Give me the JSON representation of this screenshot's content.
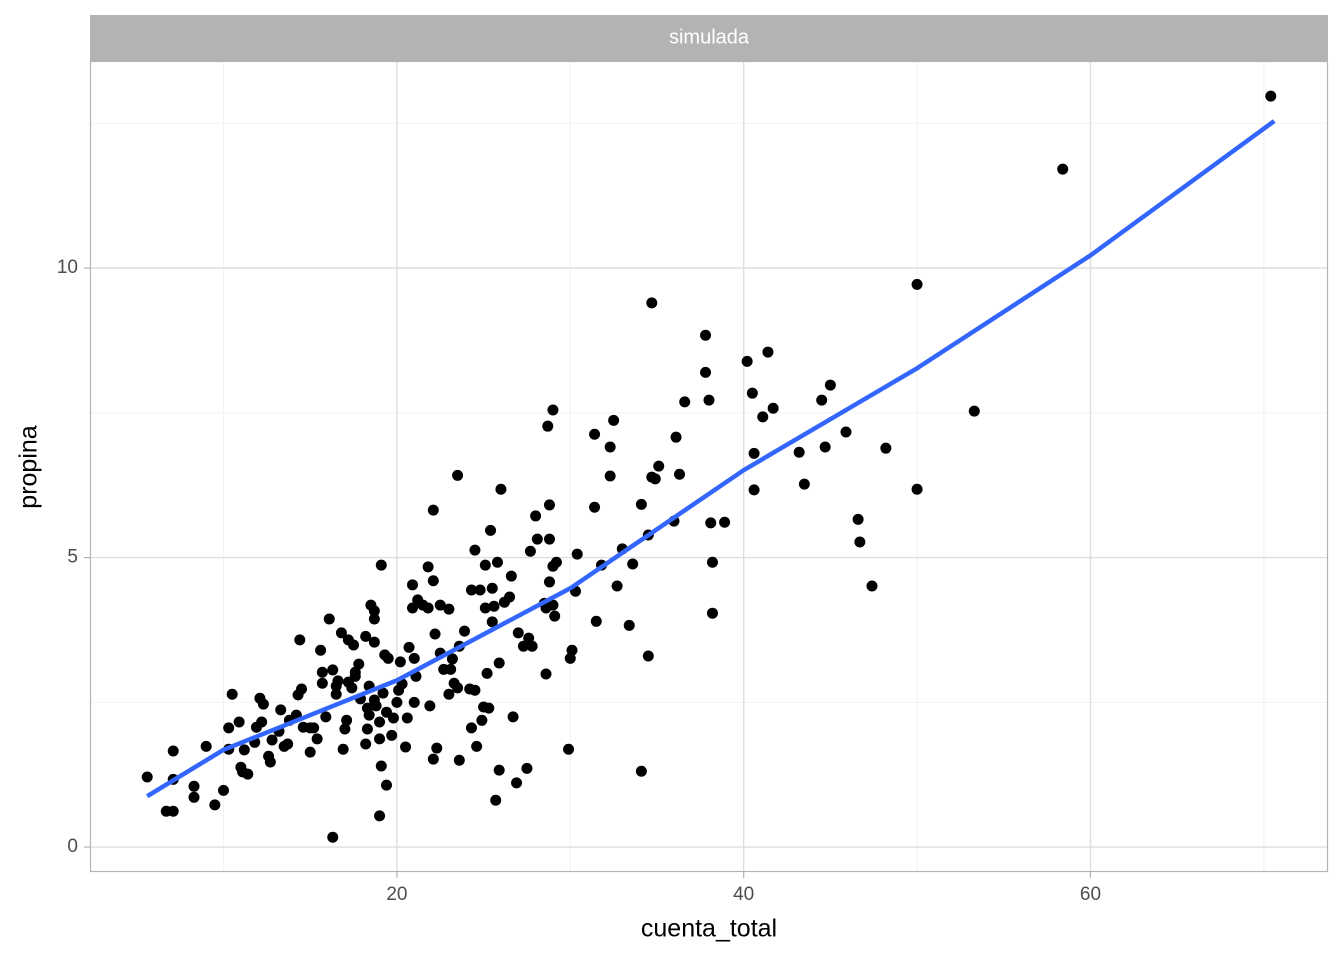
{
  "chart_data": {
    "type": "scatter",
    "facet": "simulada",
    "x_label": "cuenta_total",
    "y_label": "propina",
    "xlim": [
      2.3,
      73.7
    ],
    "ylim": [
      -0.43,
      13.56
    ],
    "xticks": [
      20,
      40,
      60
    ],
    "yticks": [
      0,
      5,
      10
    ],
    "xminor": [
      10,
      30,
      50,
      70
    ],
    "yminor": [
      2.5,
      7.5,
      12.5
    ],
    "grid": true,
    "series": [
      {
        "type": "scatter",
        "color": "#000000",
        "x": [
          5.6,
          6.7,
          7.1,
          7.1,
          7.1,
          8.3,
          8.3,
          9.0,
          9.5,
          10.0,
          10.3,
          10.3,
          10.5,
          10.9,
          11.0,
          11.1,
          11.2,
          11.4,
          11.8,
          11.9,
          12.1,
          12.2,
          12.3,
          12.6,
          12.7,
          12.8,
          13.2,
          13.3,
          13.5,
          13.7,
          13.8,
          14.2,
          14.3,
          14.4,
          14.5,
          14.6,
          15.0,
          15.0,
          15.2,
          15.4,
          15.6,
          15.7,
          15.7,
          15.9,
          16.1,
          16.3,
          16.3,
          16.5,
          16.5,
          16.6,
          16.8,
          16.9,
          17.0,
          17.1,
          17.2,
          17.2,
          17.4,
          17.5,
          17.6,
          17.6,
          17.8,
          17.9,
          18.2,
          18.2,
          18.3,
          18.3,
          18.4,
          18.4,
          18.5,
          18.7,
          18.7,
          18.7,
          18.7,
          18.8,
          19.0,
          19.0,
          19.0,
          19.1,
          19.1,
          19.2,
          19.3,
          19.4,
          19.4,
          19.5,
          19.7,
          19.8,
          20.0,
          20.1,
          20.2,
          20.3,
          20.5,
          20.6,
          20.7,
          20.9,
          20.9,
          21.0,
          21.0,
          21.1,
          21.2,
          21.5,
          21.8,
          21.8,
          21.9,
          22.1,
          22.1,
          22.1,
          22.2,
          22.3,
          22.5,
          22.5,
          22.7,
          23.0,
          23.0,
          23.1,
          23.2,
          23.3,
          23.5,
          23.5,
          23.6,
          23.6,
          23.9,
          24.2,
          24.3,
          24.3,
          24.5,
          24.5,
          24.6,
          24.8,
          24.9,
          25.0,
          25.1,
          25.1,
          25.2,
          25.3,
          25.4,
          25.5,
          25.5,
          25.6,
          25.7,
          25.8,
          25.9,
          25.9,
          26.0,
          26.2,
          26.5,
          26.6,
          26.7,
          26.9,
          27.0,
          27.3,
          27.5,
          27.6,
          27.7,
          27.8,
          28.0,
          28.1,
          28.5,
          28.6,
          28.6,
          28.7,
          28.8,
          28.8,
          28.8,
          29.0,
          29.0,
          29.0,
          29.1,
          29.2,
          29.9,
          30.0,
          30.1,
          30.3,
          30.4,
          31.4,
          31.4,
          31.5,
          31.8,
          32.3,
          32.3,
          32.5,
          32.7,
          33.0,
          33.4,
          33.6,
          34.1,
          34.1,
          34.5,
          34.5,
          34.7,
          34.7,
          34.9,
          35.1,
          35.98,
          36.1,
          36.3,
          36.6,
          37.8,
          37.8,
          38.0,
          38.1,
          38.2,
          38.2,
          38.9,
          40.2,
          40.5,
          40.6,
          40.6,
          41.1,
          41.4,
          41.7,
          43.2,
          43.5,
          44.5,
          44.7,
          45.0,
          45.9,
          46.6,
          46.7,
          47.4,
          48.2,
          50.0,
          50.0,
          53.3,
          58.4,
          70.4
        ],
        "values": [
          1.21,
          0.62,
          0.62,
          1.66,
          1.17,
          1.05,
          0.86,
          1.74,
          0.73,
          0.98,
          1.69,
          2.06,
          2.64,
          2.16,
          1.38,
          1.3,
          1.68,
          1.26,
          1.81,
          2.07,
          2.57,
          2.16,
          2.47,
          1.57,
          1.47,
          1.85,
          2.0,
          2.37,
          1.74,
          1.78,
          2.19,
          2.28,
          2.63,
          3.58,
          2.73,
          2.07,
          2.06,
          1.64,
          2.06,
          1.87,
          3.4,
          3.02,
          2.83,
          2.25,
          3.94,
          0.17,
          3.06,
          2.78,
          2.64,
          2.87,
          3.7,
          1.69,
          2.04,
          2.19,
          3.58,
          2.85,
          2.75,
          3.49,
          2.95,
          3.02,
          3.16,
          2.56,
          1.78,
          3.64,
          2.04,
          2.4,
          2.28,
          2.78,
          4.18,
          4.08,
          3.94,
          3.54,
          2.54,
          2.44,
          1.87,
          2.16,
          0.54,
          4.87,
          1.4,
          2.66,
          3.32,
          1.07,
          2.33,
          3.26,
          1.93,
          2.23,
          2.5,
          2.71,
          3.2,
          2.82,
          1.73,
          2.23,
          3.45,
          4.53,
          4.13,
          2.5,
          3.26,
          2.95,
          4.27,
          4.18,
          4.13,
          4.84,
          2.44,
          4.6,
          5.82,
          1.52,
          3.68,
          1.71,
          4.18,
          3.35,
          3.07,
          4.11,
          2.64,
          3.07,
          3.25,
          2.83,
          6.42,
          2.75,
          3.47,
          1.5,
          3.73,
          2.73,
          2.06,
          4.44,
          5.13,
          2.71,
          1.74,
          4.44,
          2.19,
          2.42,
          4.87,
          4.13,
          3.0,
          2.4,
          5.47,
          4.47,
          3.89,
          4.16,
          0.81,
          4.92,
          3.18,
          1.33,
          6.18,
          4.23,
          4.32,
          4.68,
          2.25,
          1.11,
          3.7,
          3.47,
          1.36,
          3.61,
          5.11,
          3.47,
          5.72,
          5.32,
          4.21,
          4.13,
          2.99,
          7.27,
          5.91,
          4.58,
          5.32,
          4.85,
          7.55,
          4.18,
          3.99,
          4.92,
          1.69,
          3.26,
          3.4,
          4.42,
          5.06,
          7.13,
          5.87,
          3.9,
          4.87,
          6.41,
          6.91,
          7.37,
          4.51,
          5.15,
          3.83,
          4.89,
          1.31,
          5.92,
          3.3,
          5.39,
          9.4,
          6.39,
          6.36,
          6.58,
          5.63,
          7.08,
          6.44,
          7.69,
          8.84,
          8.2,
          7.72,
          5.6,
          4.92,
          4.04,
          5.61,
          8.39,
          7.84,
          6.17,
          6.8,
          7.43,
          8.55,
          7.58,
          6.82,
          6.27,
          7.72,
          6.91,
          7.98,
          7.17,
          5.66,
          5.27,
          4.51,
          6.89,
          9.72,
          6.18,
          7.53,
          11.71,
          12.97
        ]
      },
      {
        "type": "line",
        "color": "#3366FF",
        "x": [
          5.6,
          10,
          20,
          30,
          40,
          50,
          60,
          70.6
        ],
        "values": [
          0.88,
          1.68,
          2.88,
          4.47,
          6.51,
          8.27,
          10.22,
          12.54
        ]
      }
    ]
  }
}
